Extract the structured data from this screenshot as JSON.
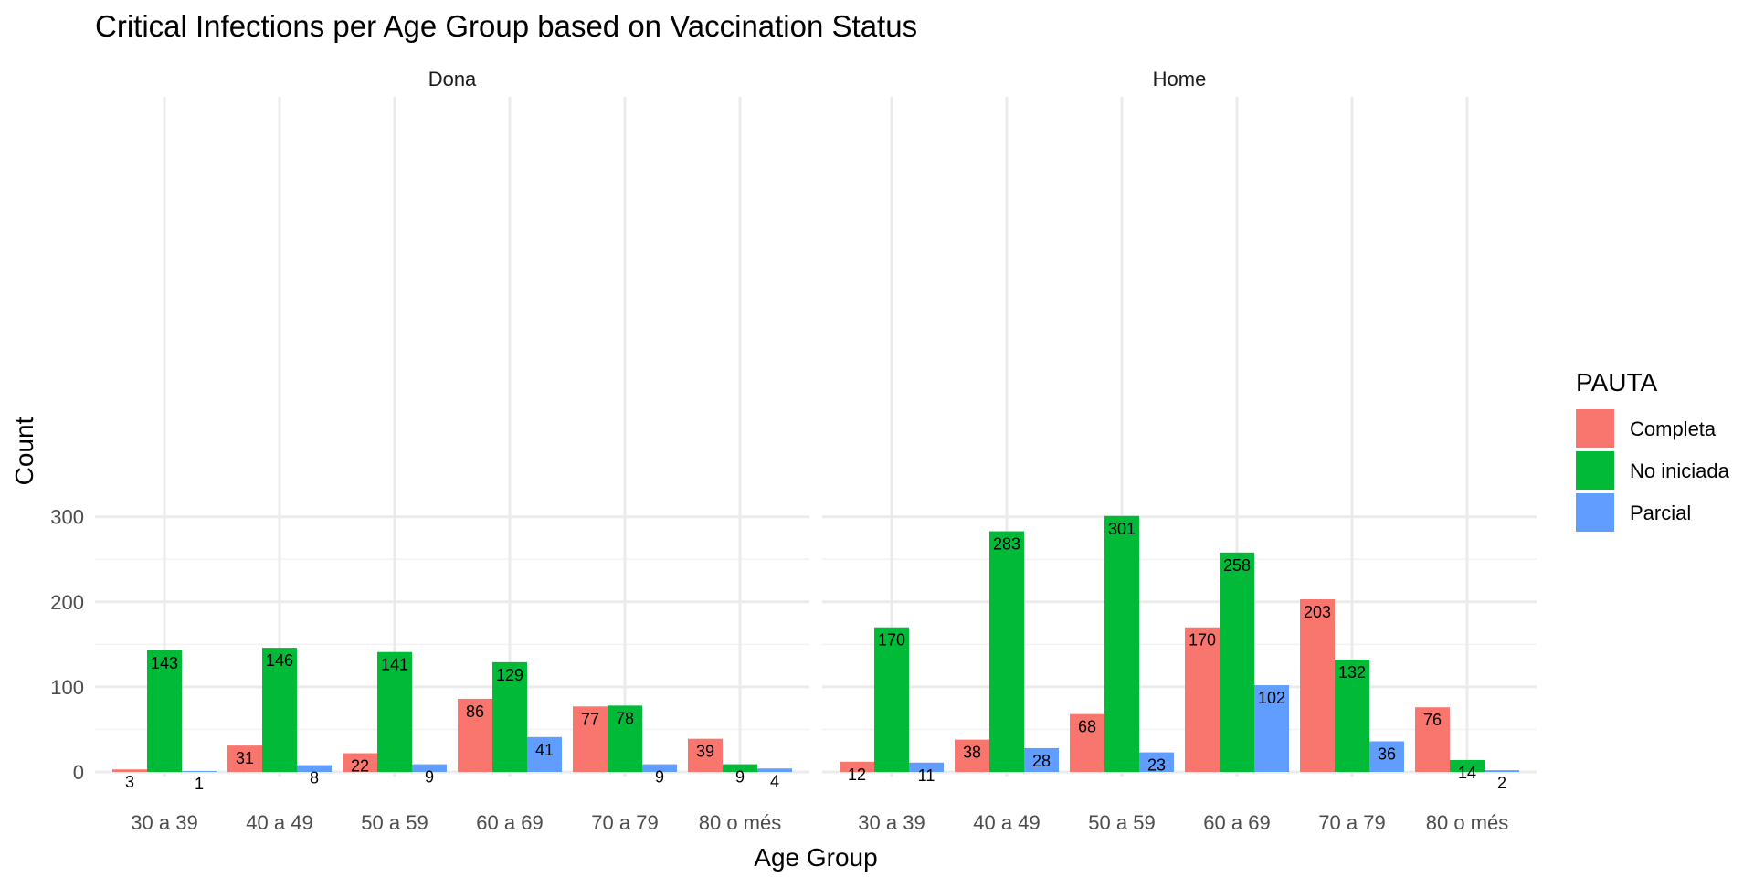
{
  "chart_data": {
    "type": "bar",
    "title": "Critical Infections per Age Group based on Vaccination Status",
    "xlabel": "Age Group",
    "ylabel": "Count",
    "ylim": [
      0,
      320
    ],
    "yticks": [
      0,
      100,
      200,
      300
    ],
    "grid": true,
    "legend": {
      "title": "PAUTA",
      "position": "right",
      "entries": [
        {
          "name": "Completa",
          "color": "#F8766D"
        },
        {
          "name": "No iniciada",
          "color": "#00BA38"
        },
        {
          "name": "Parcial",
          "color": "#619CFF"
        }
      ]
    },
    "categories": [
      "30 a 39",
      "40 a 49",
      "50 a 59",
      "60 a 69",
      "70 a 79",
      "80 o més"
    ],
    "panels": [
      {
        "name": "Dona",
        "series": [
          {
            "name": "Completa",
            "values": [
              3,
              31,
              22,
              86,
              77,
              39
            ]
          },
          {
            "name": "No iniciada",
            "values": [
              143,
              146,
              141,
              129,
              78,
              9
            ]
          },
          {
            "name": "Parcial",
            "values": [
              1,
              8,
              9,
              41,
              9,
              4
            ]
          }
        ]
      },
      {
        "name": "Home",
        "series": [
          {
            "name": "Completa",
            "values": [
              12,
              38,
              68,
              170,
              203,
              76
            ]
          },
          {
            "name": "No iniciada",
            "values": [
              170,
              283,
              301,
              258,
              132,
              14
            ]
          },
          {
            "name": "Parcial",
            "values": [
              11,
              28,
              23,
              102,
              36,
              2
            ]
          }
        ]
      }
    ]
  }
}
